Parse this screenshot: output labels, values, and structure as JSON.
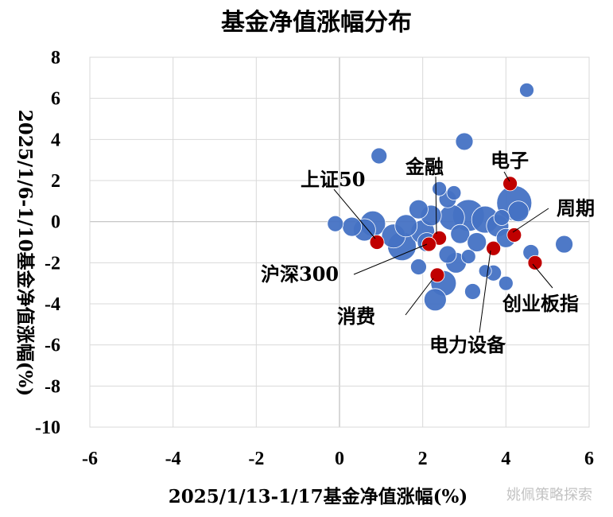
{
  "chart_data": {
    "type": "scatter",
    "title": "基金净值涨幅分布",
    "xlabel": "2025/1/13-1/17基金净值涨幅(%)",
    "ylabel": "2025/1/6-1/10基金净值涨幅(%)",
    "xlim": [
      -6,
      6
    ],
    "ylim": [
      -10,
      8
    ],
    "xticks": [
      "-6",
      "-4",
      "-2",
      "0",
      "2",
      "4",
      "6"
    ],
    "yticks": [
      "8",
      "6",
      "4",
      "2",
      "0",
      "-2",
      "-4",
      "-6",
      "-8",
      "-10"
    ],
    "grid": true,
    "bubbles": [
      {
        "x": 4.5,
        "y": 6.4,
        "r": 9
      },
      {
        "x": 3.0,
        "y": 3.9,
        "r": 11
      },
      {
        "x": 0.95,
        "y": 3.2,
        "r": 10
      },
      {
        "x": -0.1,
        "y": -0.1,
        "r": 10
      },
      {
        "x": 0.3,
        "y": -0.25,
        "r": 12
      },
      {
        "x": 0.6,
        "y": -0.4,
        "r": 14
      },
      {
        "x": 0.8,
        "y": -0.1,
        "r": 16
      },
      {
        "x": 1.3,
        "y": -0.7,
        "r": 15
      },
      {
        "x": 1.6,
        "y": -0.2,
        "r": 14
      },
      {
        "x": 1.5,
        "y": -1.2,
        "r": 18
      },
      {
        "x": 1.9,
        "y": 0.6,
        "r": 12
      },
      {
        "x": 2.0,
        "y": -0.5,
        "r": 15
      },
      {
        "x": 2.2,
        "y": 0.3,
        "r": 13
      },
      {
        "x": 2.4,
        "y": 1.6,
        "r": 9
      },
      {
        "x": 2.6,
        "y": 1.1,
        "r": 11
      },
      {
        "x": 2.7,
        "y": 0.2,
        "r": 16
      },
      {
        "x": 2.9,
        "y": -0.6,
        "r": 12
      },
      {
        "x": 3.1,
        "y": 0.3,
        "r": 20
      },
      {
        "x": 3.3,
        "y": -1.0,
        "r": 12
      },
      {
        "x": 3.5,
        "y": 0.1,
        "r": 17
      },
      {
        "x": 3.8,
        "y": -0.2,
        "r": 14
      },
      {
        "x": 4.0,
        "y": -0.8,
        "r": 12
      },
      {
        "x": 4.2,
        "y": 0.9,
        "r": 22
      },
      {
        "x": 4.3,
        "y": 0.5,
        "r": 13
      },
      {
        "x": 4.6,
        "y": -1.5,
        "r": 10
      },
      {
        "x": 5.4,
        "y": -1.1,
        "r": 11
      },
      {
        "x": 2.8,
        "y": -2.0,
        "r": 13
      },
      {
        "x": 3.1,
        "y": -1.7,
        "r": 9
      },
      {
        "x": 2.5,
        "y": -3.0,
        "r": 16
      },
      {
        "x": 2.3,
        "y": -3.8,
        "r": 14
      },
      {
        "x": 3.2,
        "y": -3.4,
        "r": 10
      },
      {
        "x": 3.7,
        "y": -2.5,
        "r": 10
      },
      {
        "x": 4.0,
        "y": -3.0,
        "r": 9
      },
      {
        "x": 1.9,
        "y": -2.2,
        "r": 10
      },
      {
        "x": 2.6,
        "y": -1.6,
        "r": 11
      },
      {
        "x": 2.1,
        "y": -1.0,
        "r": 12
      },
      {
        "x": 3.5,
        "y": -2.4,
        "r": 8
      },
      {
        "x": 3.9,
        "y": 0.2,
        "r": 10
      },
      {
        "x": 2.75,
        "y": 1.4,
        "r": 9
      }
    ],
    "highlights": [
      {
        "name": "上证50",
        "x": 0.9,
        "y": -1.0
      },
      {
        "name": "金融",
        "x": 2.4,
        "y": -0.8
      },
      {
        "name": "沪深300",
        "x": 2.15,
        "y": -1.1
      },
      {
        "name": "消费",
        "x": 2.35,
        "y": -2.6
      },
      {
        "name": "电子",
        "x": 4.1,
        "y": 1.85
      },
      {
        "name": "周期",
        "x": 4.2,
        "y": -0.65
      },
      {
        "name": "电力设备",
        "x": 3.7,
        "y": -1.3
      },
      {
        "name": "创业板指",
        "x": 4.7,
        "y": -2.0
      }
    ]
  },
  "watermark": "姚佩策略探索"
}
